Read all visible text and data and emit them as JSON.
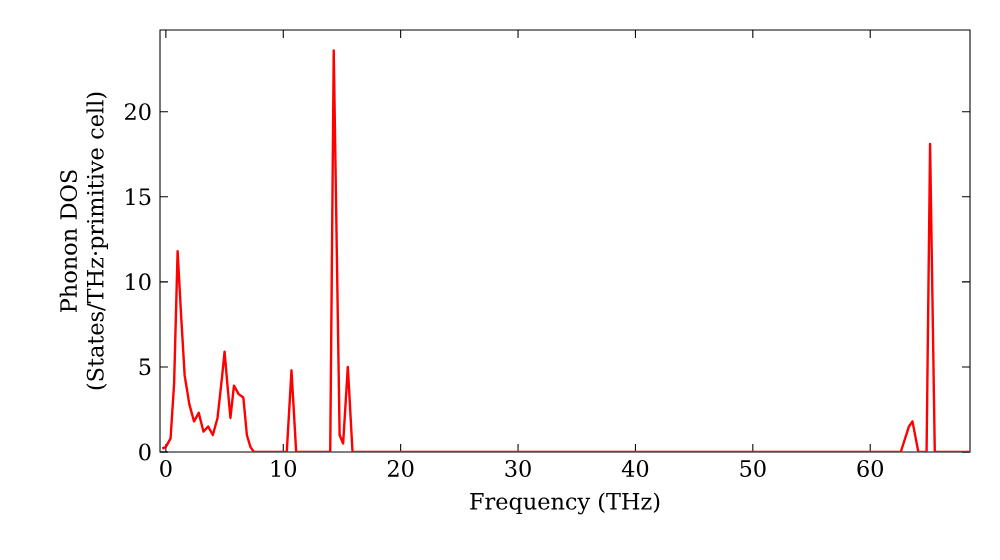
{
  "chart_data": {
    "type": "line",
    "xlabel": "Frequency (THz)",
    "ylabel": "Phonon DOS (States/THz·primitive cell)",
    "x": [
      -0.3,
      0.0,
      0.4,
      0.7,
      1.0,
      1.3,
      1.6,
      2.0,
      2.4,
      2.8,
      3.2,
      3.6,
      4.0,
      4.4,
      4.8,
      5.0,
      5.3,
      5.5,
      5.8,
      6.2,
      6.6,
      6.9,
      7.2,
      7.5,
      10.3,
      10.7,
      11.1,
      14.0,
      14.3,
      14.8,
      15.1,
      15.5,
      15.9,
      62.6,
      63.3,
      63.6,
      64.1,
      64.8,
      65.1,
      65.5,
      68.5
    ],
    "series": [
      {
        "color": "#ff0000",
        "values": [
          0.2,
          0.3,
          0.8,
          4.0,
          11.8,
          8.0,
          4.5,
          2.8,
          1.8,
          2.3,
          1.2,
          1.5,
          1.0,
          2.0,
          4.5,
          5.9,
          3.5,
          2.0,
          3.9,
          3.4,
          3.2,
          1.0,
          0.3,
          0.0,
          0.0,
          4.8,
          0.0,
          0.0,
          23.6,
          1.0,
          0.5,
          5.0,
          0.0,
          0.0,
          1.5,
          1.8,
          0.0,
          0.0,
          18.1,
          0.0,
          0.0
        ]
      }
    ],
    "xlim": [
      -0.5,
      68.5
    ],
    "ylim": [
      0,
      24.8
    ],
    "xticks": [
      0,
      10,
      20,
      30,
      40,
      50,
      60
    ],
    "yticks": [
      0,
      5,
      10,
      15,
      20
    ],
    "grid": false,
    "marker": "none",
    "line_style": "solid"
  }
}
